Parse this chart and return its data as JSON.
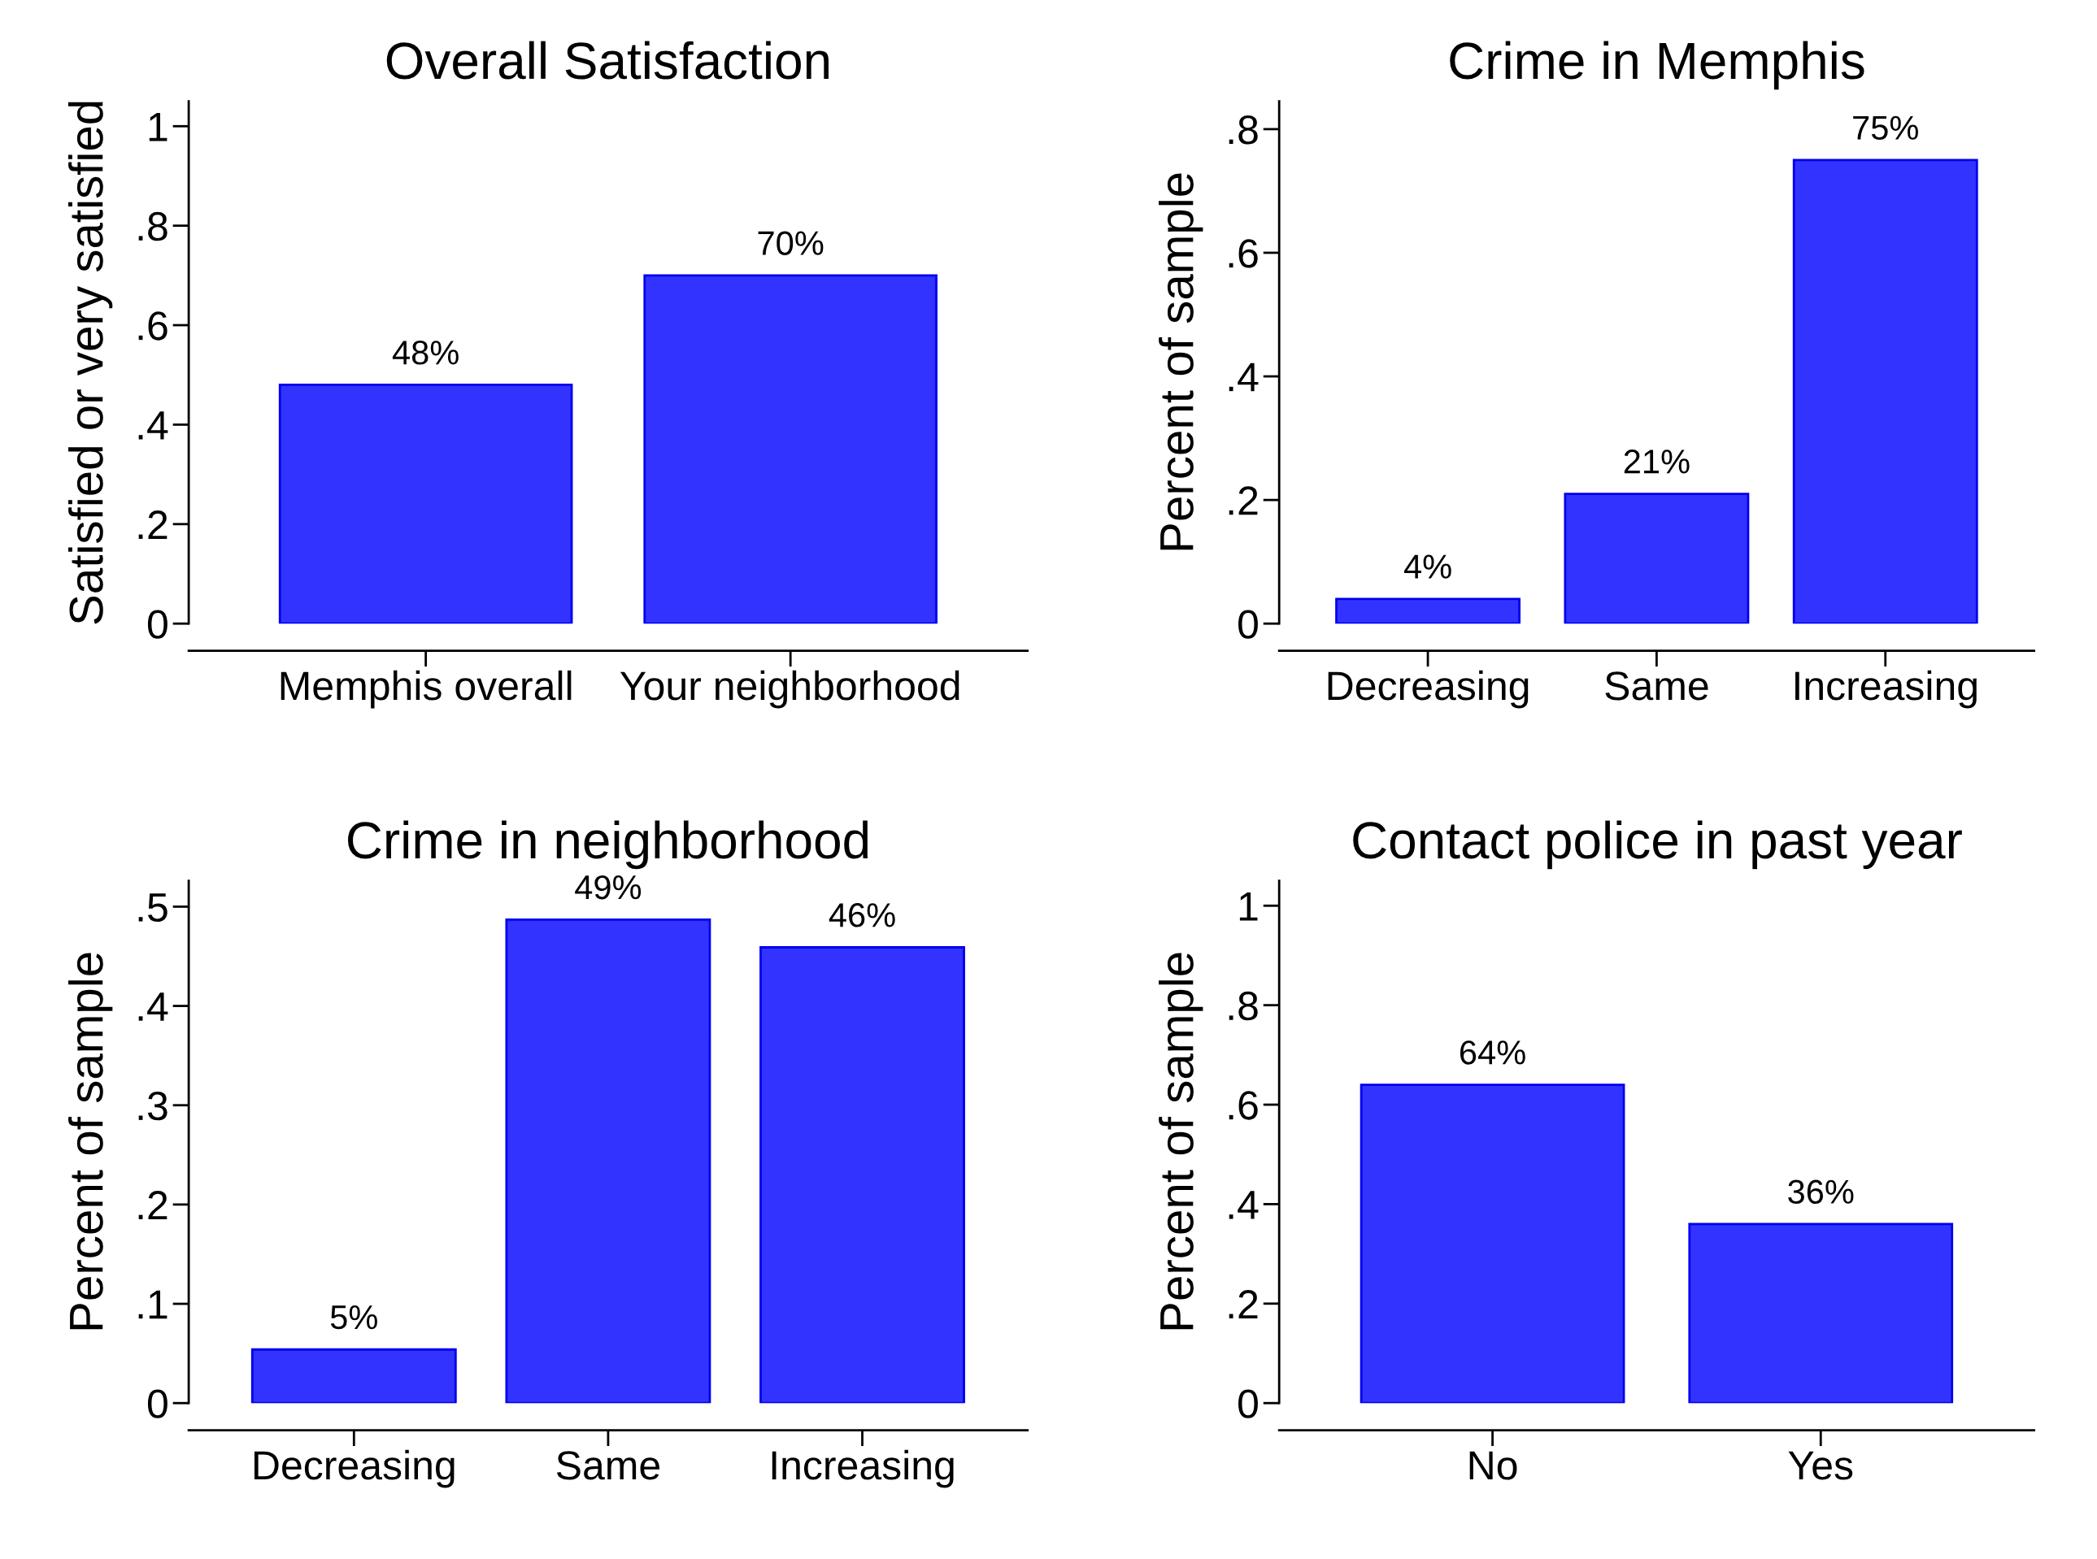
{
  "chart_data": [
    {
      "type": "bar",
      "title": "Overall Satisfaction",
      "ylabel": "Satisfied or very satisfied",
      "categories": [
        "Memphis overall",
        "Your neighborhood"
      ],
      "values": [
        0.48,
        0.7
      ],
      "value_labels": [
        "48%",
        "70%"
      ],
      "color": "#3333ff",
      "ylim": [
        0,
        1.05
      ],
      "yticks": [
        0,
        {
          "value": 0.2,
          "label": ".2"
        },
        {
          "value": 0.4,
          "label": ".4"
        },
        {
          "value": 0.6,
          "label": ".6"
        },
        {
          "value": 0.8,
          "label": ".8"
        },
        1
      ],
      "grid": false,
      "legend": false
    },
    {
      "type": "bar",
      "title": "Crime in Memphis",
      "ylabel": "Percent of sample",
      "categories": [
        "Decreasing",
        "Same",
        "Increasing"
      ],
      "values": [
        0.04,
        0.21,
        0.75
      ],
      "value_labels": [
        "4%",
        "21%",
        "75%"
      ],
      "color": "#3333ff",
      "ylim": [
        0,
        0.845
      ],
      "yticks": [
        0,
        {
          "value": 0.2,
          "label": ".2"
        },
        {
          "value": 0.4,
          "label": ".4"
        },
        {
          "value": 0.6,
          "label": ".6"
        },
        {
          "value": 0.8,
          "label": ".8"
        }
      ],
      "grid": false,
      "legend": false
    },
    {
      "type": "bar",
      "title": "Crime in neighborhood",
      "ylabel": "Percent of sample",
      "categories": [
        "Decreasing",
        "Same",
        "Increasing"
      ],
      "values": [
        0.054,
        0.487,
        0.459
      ],
      "value_labels": [
        "5%",
        "49%",
        "46%"
      ],
      "color": "#3333ff",
      "ylim": [
        0,
        0.526
      ],
      "yticks": [
        0,
        {
          "value": 0.1,
          "label": ".1"
        },
        {
          "value": 0.2,
          "label": ".2"
        },
        {
          "value": 0.3,
          "label": ".3"
        },
        {
          "value": 0.4,
          "label": ".4"
        },
        {
          "value": 0.5,
          "label": ".5"
        }
      ],
      "grid": false,
      "legend": false
    },
    {
      "type": "bar",
      "title": "Contact police in past year",
      "ylabel": "Percent of sample",
      "categories": [
        "No",
        "Yes"
      ],
      "values": [
        0.64,
        0.36
      ],
      "value_labels": [
        "64%",
        "36%"
      ],
      "color": "#3333ff",
      "ylim": [
        0,
        1.05
      ],
      "yticks": [
        0,
        {
          "value": 0.2,
          "label": ".2"
        },
        {
          "value": 0.4,
          "label": ".4"
        },
        {
          "value": 0.6,
          "label": ".6"
        },
        {
          "value": 0.8,
          "label": ".8"
        },
        1
      ],
      "grid": false,
      "legend": false
    }
  ]
}
